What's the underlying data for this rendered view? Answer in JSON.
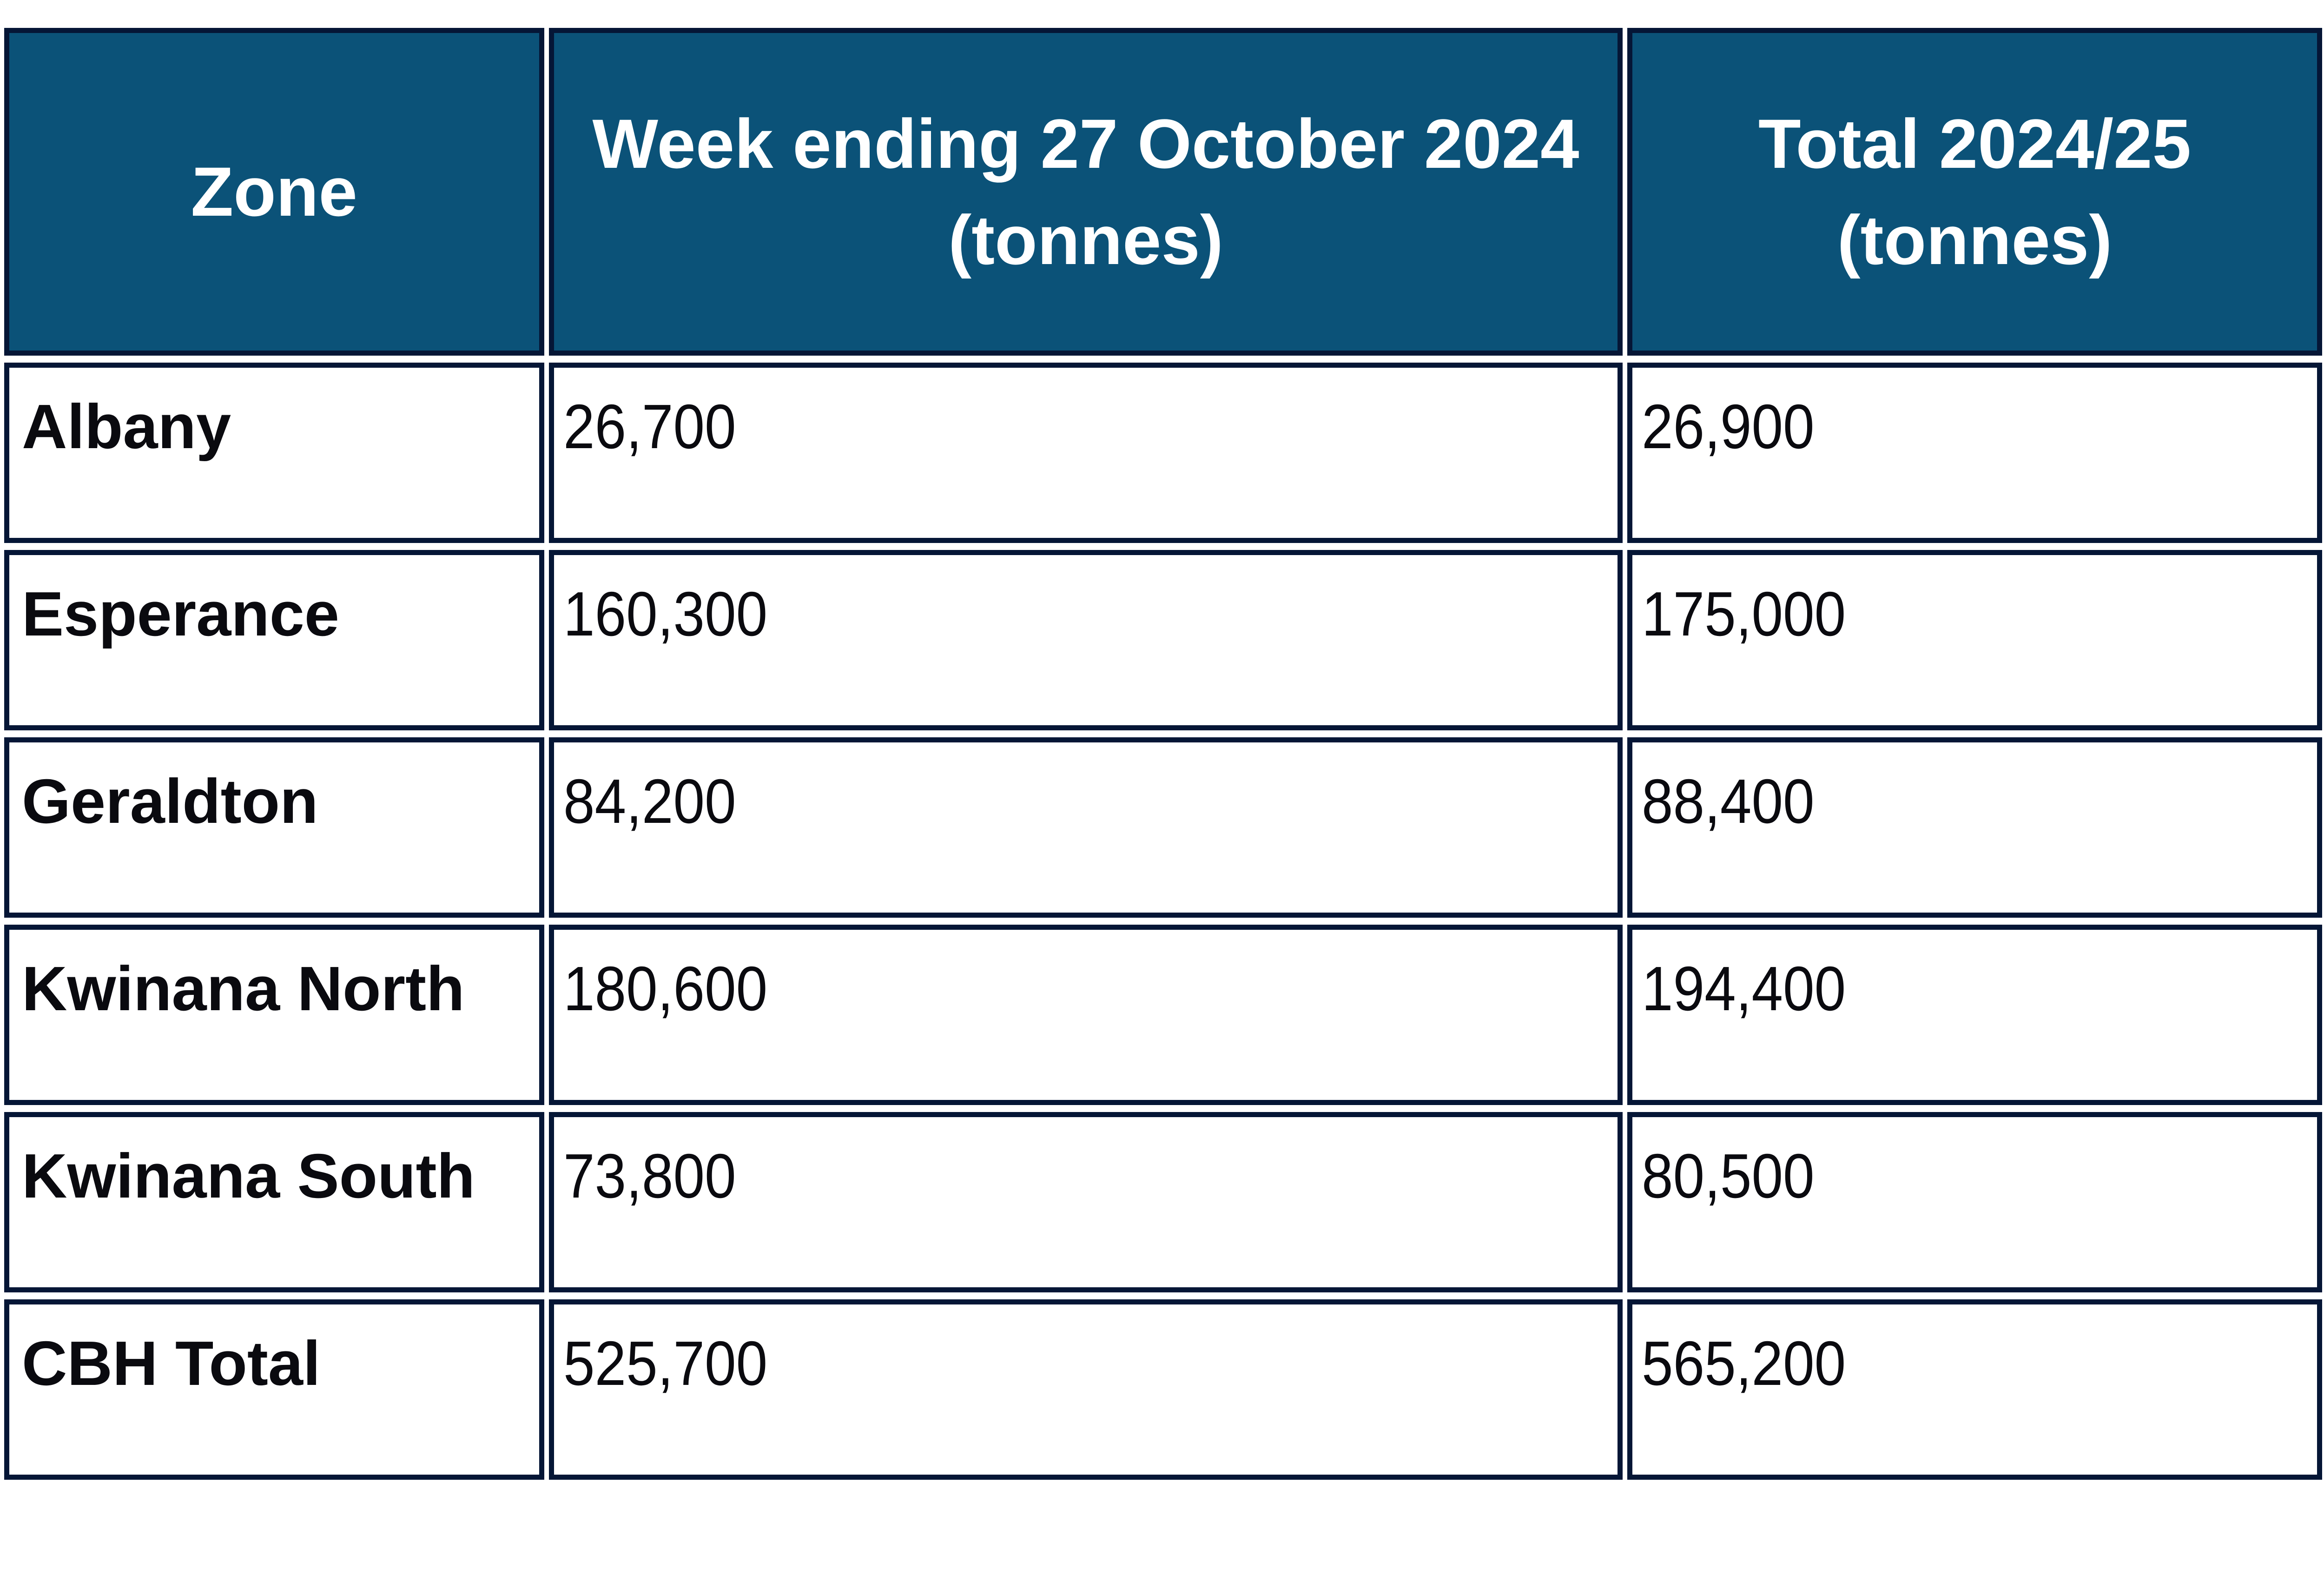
{
  "colors": {
    "background": "#ffffff",
    "header_bg": "#0b5278",
    "border": "#051636",
    "header_text": "#ffffff",
    "body_text": "#0a0a0f"
  },
  "table": {
    "header": {
      "zone_label": "Zone",
      "week_line1": "Week ending 27 October 2024",
      "week_line2": "(tonnes)",
      "total_line1": "Total 2024/25",
      "total_line2": "(tonnes)"
    },
    "rows": [
      {
        "zone": "Albany",
        "week": "26,700",
        "total": "26,900"
      },
      {
        "zone": "Esperance",
        "week": "160,300",
        "total": "175,000"
      },
      {
        "zone": "Geraldton",
        "week": "84,200",
        "total": "88,400"
      },
      {
        "zone": "Kwinana North",
        "week": "180,600",
        "total": "194,400"
      },
      {
        "zone": "Kwinana South",
        "week": "73,800",
        "total": "80,500"
      },
      {
        "zone": "CBH Total",
        "week": "525,700",
        "total": "565,200"
      }
    ]
  },
  "chart_data": {
    "type": "table",
    "columns": [
      "Zone",
      "Week ending 27 October 2024 (tonnes)",
      "Total 2024/25 (tonnes)"
    ],
    "rows": [
      [
        "Albany",
        26700,
        26900
      ],
      [
        "Esperance",
        160300,
        175000
      ],
      [
        "Geraldton",
        84200,
        88400
      ],
      [
        "Kwinana North",
        180600,
        194400
      ],
      [
        "Kwinana South",
        73800,
        80500
      ],
      [
        "CBH Total",
        525700,
        565200
      ]
    ]
  }
}
